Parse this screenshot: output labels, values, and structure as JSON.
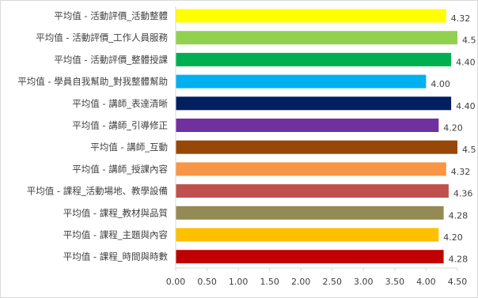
{
  "chart_data": {
    "type": "bar",
    "orientation": "horizontal",
    "title": "",
    "xlabel": "",
    "ylabel": "",
    "xlim": [
      0,
      4.5
    ],
    "xticks": [
      "0.00",
      "0.50",
      "1.00",
      "1.50",
      "2.00",
      "2.50",
      "3.00",
      "3.50",
      "4.00",
      "4.50"
    ],
    "grid": false,
    "categories": [
      "平均值 - 活動評價_活動整體",
      "平均值 - 活動評價_工作人員服務",
      "平均值 - 活動評價_整體授課",
      "平均值 - 學員自我幫助_對我整體幫助",
      "平均值 - 講師_表達清晰",
      "平均值 - 講師_引導修正",
      "平均值 - 講師_互動",
      "平均值 - 講師_授課內容",
      "平均值 - 課程_活動場地、教學設備",
      "平均值 - 課程_教材與品質",
      "平均值 - 課程_主題與內容",
      "平均值 - 課程_時間與時數"
    ],
    "values": [
      4.32,
      4.5,
      4.4,
      4.0,
      4.4,
      4.2,
      4.5,
      4.32,
      4.36,
      4.28,
      4.2,
      4.28
    ],
    "data_labels": [
      "4.32",
      "4.5",
      "4.40",
      "4.00",
      "4.40",
      "4.20",
      "4.5",
      "4.32",
      "4.36",
      "4.28",
      "4.20",
      "4.28"
    ],
    "colors": [
      "#ffff00",
      "#92d050",
      "#00b050",
      "#00b0f0",
      "#002060",
      "#7030a0",
      "#974706",
      "#f79646",
      "#c0504d",
      "#948a54",
      "#ffc000",
      "#c00000"
    ]
  }
}
